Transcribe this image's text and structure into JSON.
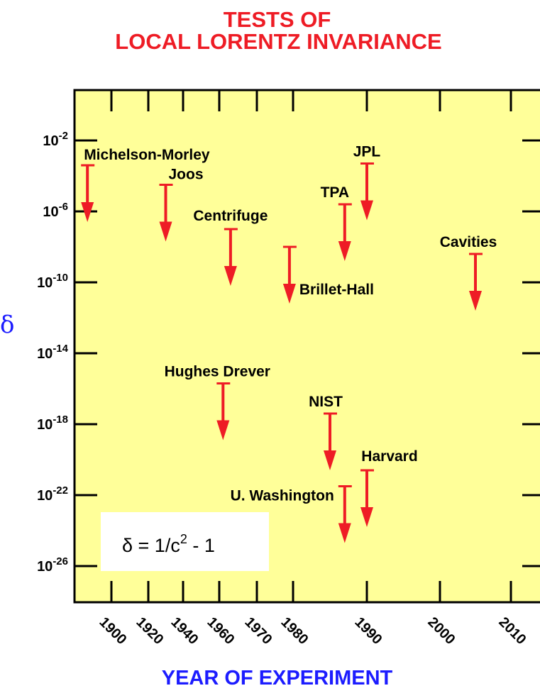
{
  "title_lines": [
    "TESTS OF",
    "LOCAL LORENTZ INVARIANCE"
  ],
  "colors": {
    "title": "#ee1c25",
    "axis_label": "#1c1cff",
    "plot_bg": "#ffff99",
    "arrow": "#ee1c25",
    "frame": "#000000"
  },
  "chart_data": {
    "type": "scatter",
    "title": "TESTS OF LOCAL LORENTZ INVARIANCE",
    "xlabel": "YEAR OF EXPERIMENT",
    "ylabel": "δ",
    "y_scale": "log",
    "ylim_exponent": [
      -28,
      4
    ],
    "x_tick_labels": [
      "1900",
      "1920",
      "1940",
      "1960",
      "1970",
      "1980",
      "1990",
      "2000",
      "2010"
    ],
    "y_ticks": [
      {
        "base": "10",
        "exp": "-2",
        "value_exp": -2
      },
      {
        "base": "10",
        "exp": "-6",
        "value_exp": -6
      },
      {
        "base": "10",
        "exp": "-10",
        "value_exp": -10
      },
      {
        "base": "10",
        "exp": "-14",
        "value_exp": -14
      },
      {
        "base": "10",
        "exp": "-18",
        "value_exp": -18
      },
      {
        "base": "10",
        "exp": "-22",
        "value_exp": -22
      },
      {
        "base": "10",
        "exp": "-26",
        "value_exp": -26
      }
    ],
    "experiments": [
      {
        "name": "Michelson-Morley",
        "year": 1887,
        "upper_limit_exp": -3.4
      },
      {
        "name": "Joos",
        "year": 1930,
        "upper_limit_exp": -4.5
      },
      {
        "name": "Centrifuge",
        "year": 1963,
        "upper_limit_exp": -7.0
      },
      {
        "name": "Brillet-Hall",
        "year": 1979,
        "upper_limit_exp": -8.0
      },
      {
        "name": "TPA",
        "year": 1987,
        "upper_limit_exp": -5.6
      },
      {
        "name": "JPL",
        "year": 1990,
        "upper_limit_exp": -3.3
      },
      {
        "name": "Cavities",
        "year": 2005,
        "upper_limit_exp": -8.4
      },
      {
        "name": "Hughes Drever",
        "year": 1961,
        "upper_limit_exp": -15.7
      },
      {
        "name": "NIST",
        "year": 1985,
        "upper_limit_exp": -17.4
      },
      {
        "name": "Harvard",
        "year": 1990,
        "upper_limit_exp": -20.6
      },
      {
        "name": "U. Washington",
        "year": 1987,
        "upper_limit_exp": -21.5
      }
    ]
  },
  "formula": {
    "lhs": "δ = 1/c",
    "sup": "2",
    "rhs": " - 1"
  }
}
